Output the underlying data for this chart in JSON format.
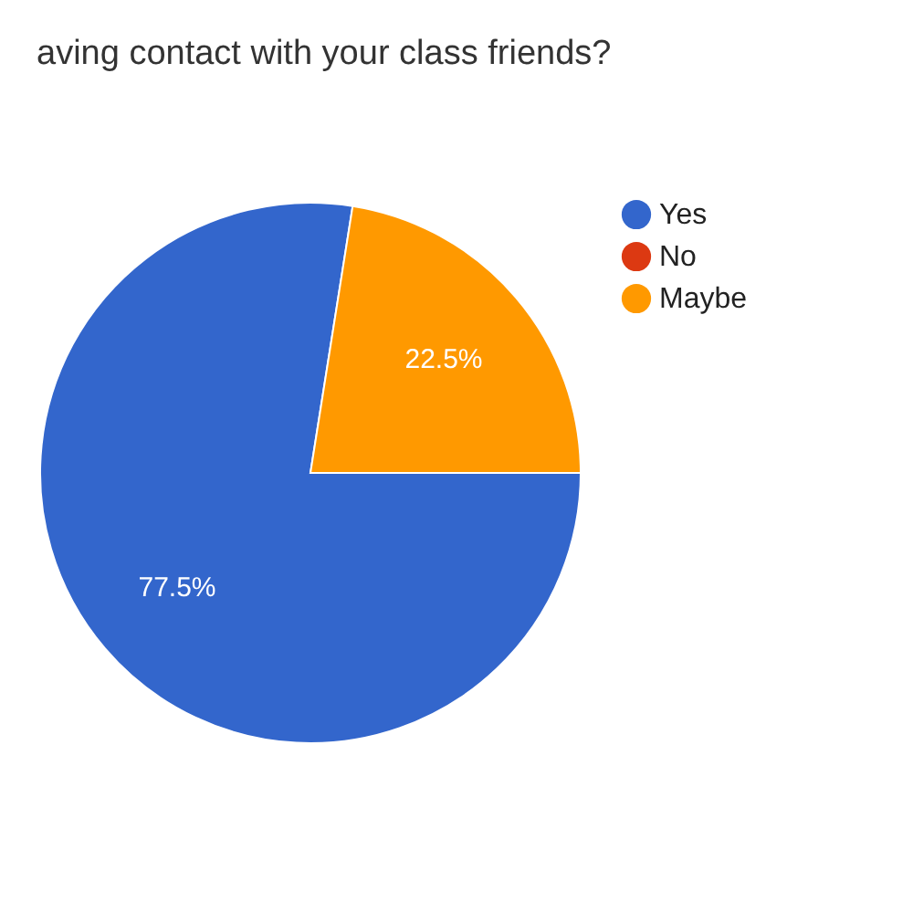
{
  "chart_data": {
    "type": "pie",
    "title": "aving contact with your class friends?",
    "categories": [
      "Yes",
      "No",
      "Maybe"
    ],
    "values": [
      77.5,
      0,
      22.5
    ],
    "colors": [
      "#3366cc",
      "#dc3912",
      "#ff9900"
    ],
    "value_labels": [
      "77.5%",
      null,
      "22.5%"
    ],
    "legend": "right"
  }
}
